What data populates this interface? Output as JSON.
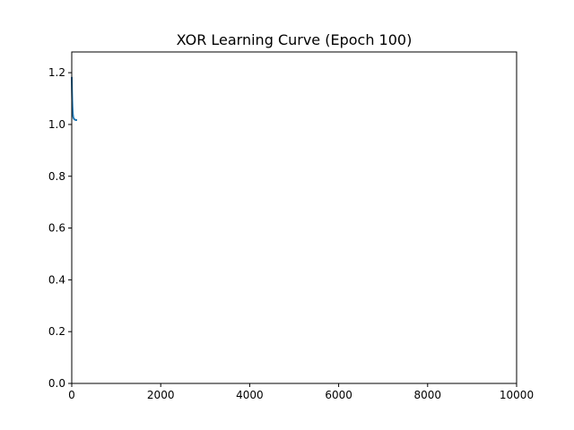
{
  "chart_data": {
    "type": "line",
    "title": "XOR Learning Curve (Epoch 100)",
    "xlabel": "",
    "ylabel": "",
    "xlim": [
      0,
      10000
    ],
    "ylim": [
      0,
      1.28
    ],
    "x_ticks": [
      0,
      2000,
      4000,
      6000,
      8000,
      10000
    ],
    "x_tick_labels": [
      "0",
      "2000",
      "4000",
      "6000",
      "8000",
      "10000"
    ],
    "y_ticks": [
      0.0,
      0.2,
      0.4,
      0.6,
      0.8,
      1.0,
      1.2
    ],
    "y_tick_labels": [
      "0.0",
      "0.2",
      "0.4",
      "0.6",
      "0.8",
      "1.0",
      "1.2"
    ],
    "grid": false,
    "series": [
      {
        "color": "#1f77b4",
        "x": [
          0,
          5,
          10,
          15,
          20,
          25,
          30,
          35,
          40,
          50,
          60,
          70,
          80,
          90,
          100
        ],
        "y": [
          1.18,
          1.13,
          1.095,
          1.07,
          1.052,
          1.04,
          1.033,
          1.028,
          1.025,
          1.022,
          1.02,
          1.019,
          1.018,
          1.017,
          1.017
        ]
      }
    ]
  }
}
